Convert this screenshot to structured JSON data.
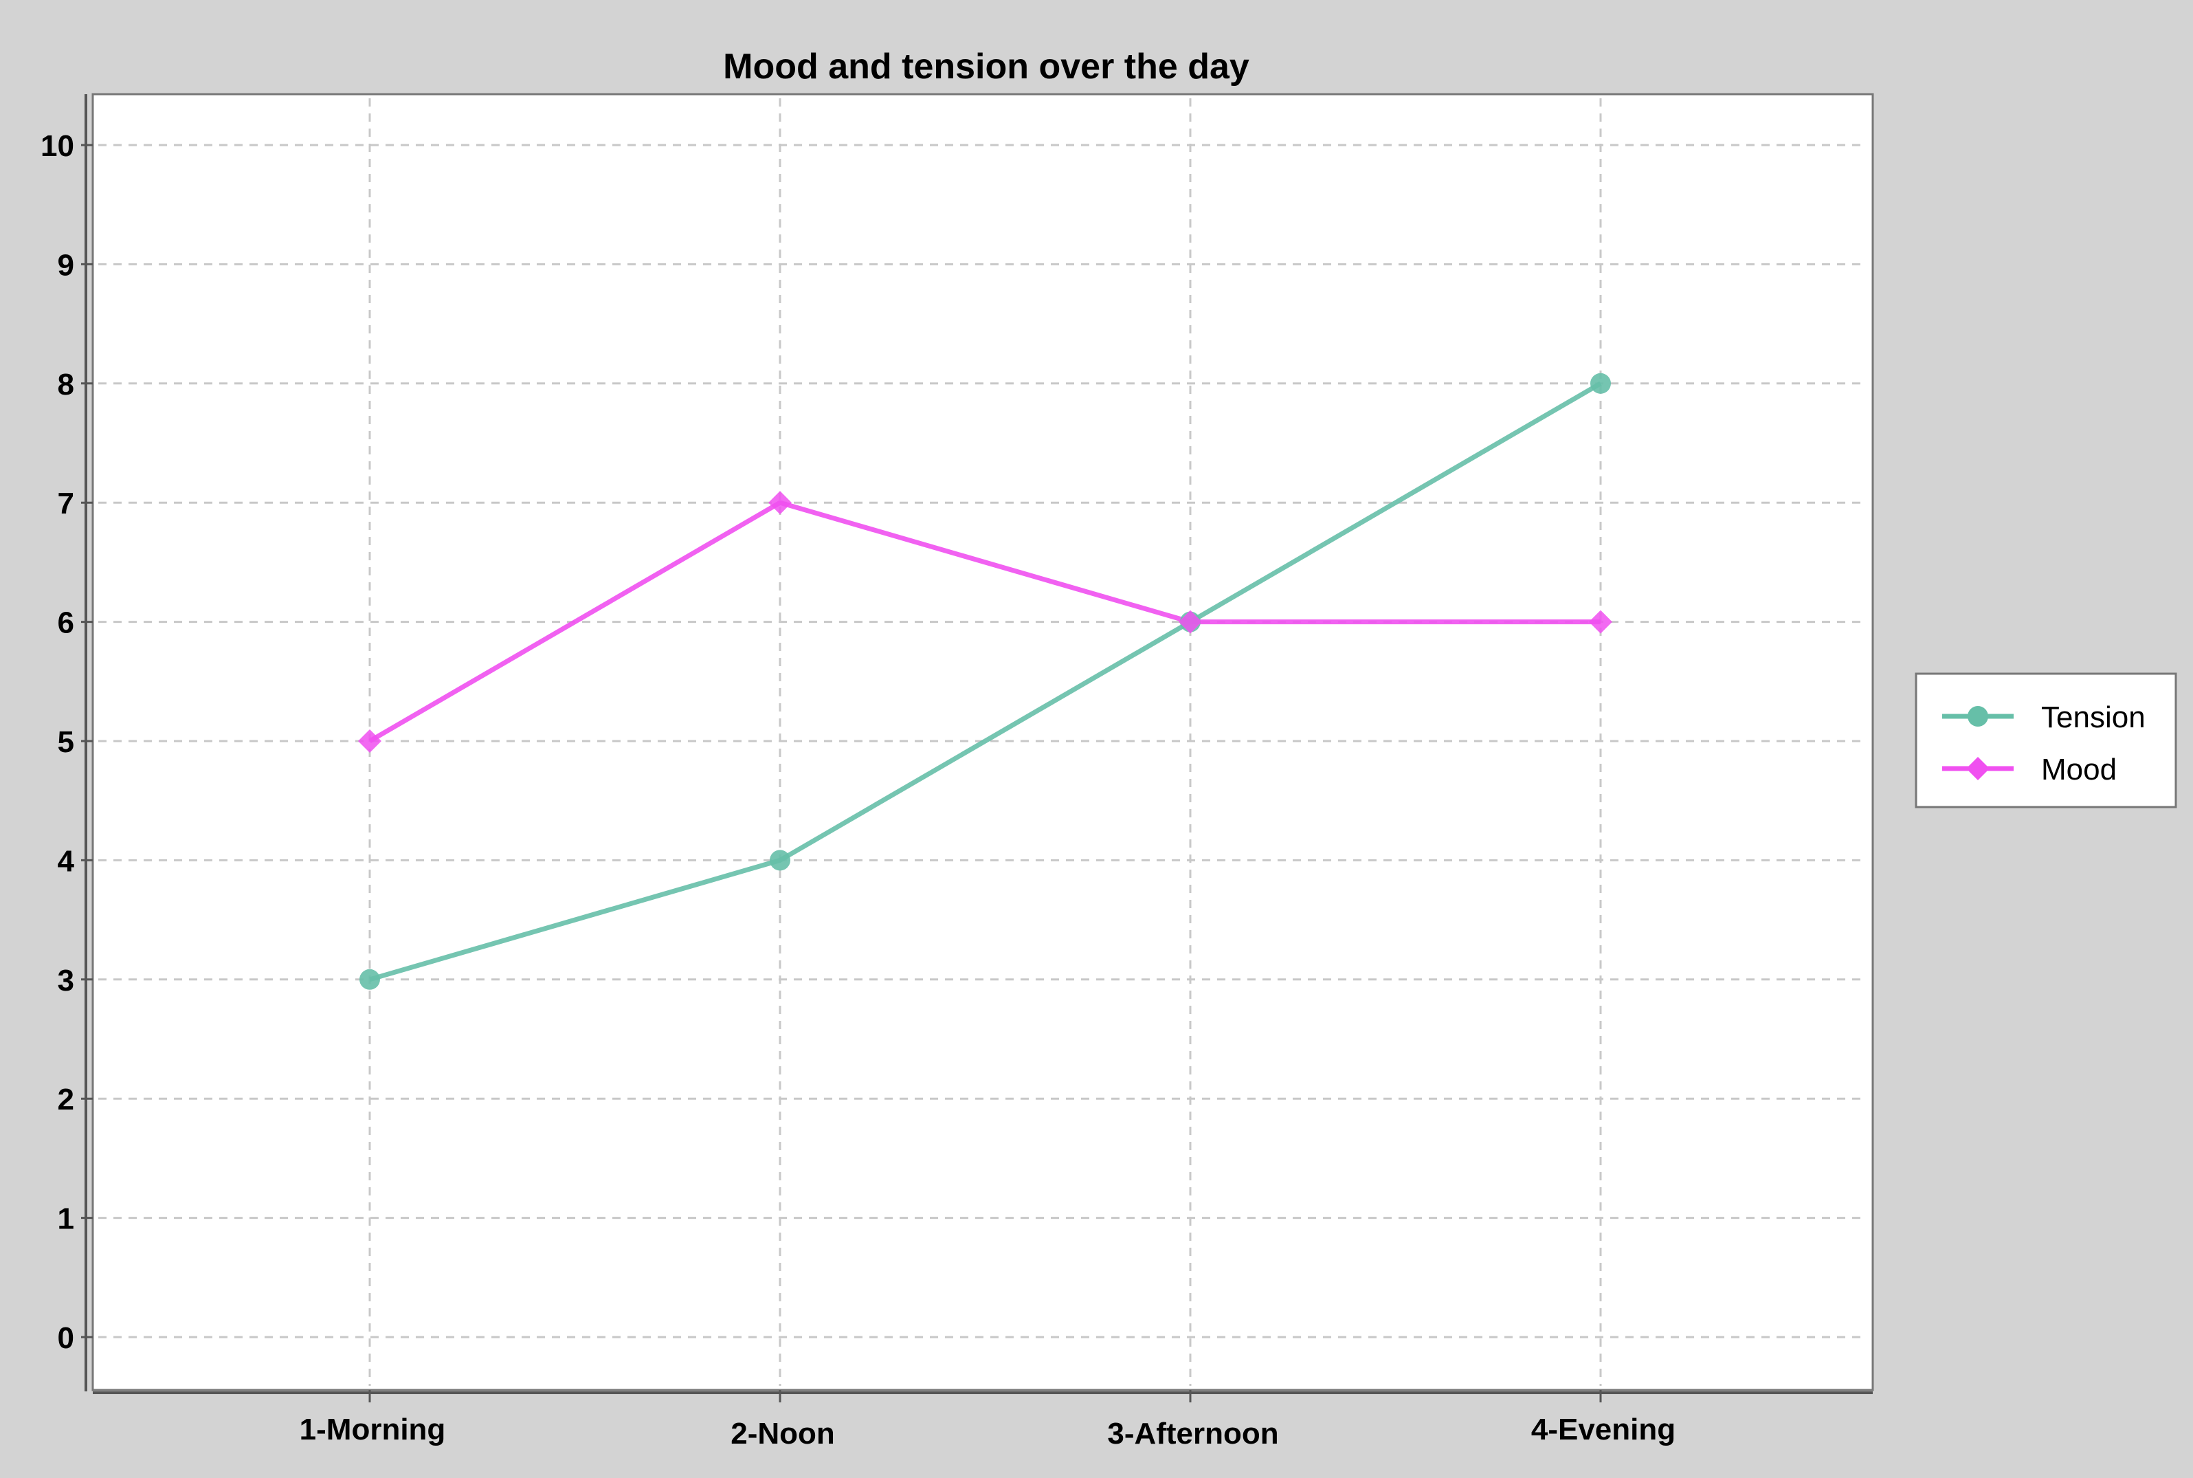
{
  "chart_data": {
    "type": "line",
    "title": "Mood and tension over the day",
    "xlabel": "",
    "ylabel": "",
    "categories": [
      "1-Morning",
      "2-Noon",
      "3-Afternoon",
      "4-Evening"
    ],
    "series": [
      {
        "name": "Tension",
        "values": [
          3,
          4,
          6,
          8
        ],
        "color": "#66bfa8",
        "marker": "circle"
      },
      {
        "name": "Mood",
        "values": [
          5,
          7,
          6,
          6
        ],
        "color": "#f050f0",
        "marker": "diamond"
      }
    ],
    "ylim": [
      -0.45,
      10.45
    ],
    "yticks": [
      "0",
      "1",
      "2",
      "3",
      "4",
      "5",
      "6",
      "7",
      "8",
      "9",
      "10"
    ],
    "grid": true,
    "legend": "right"
  }
}
